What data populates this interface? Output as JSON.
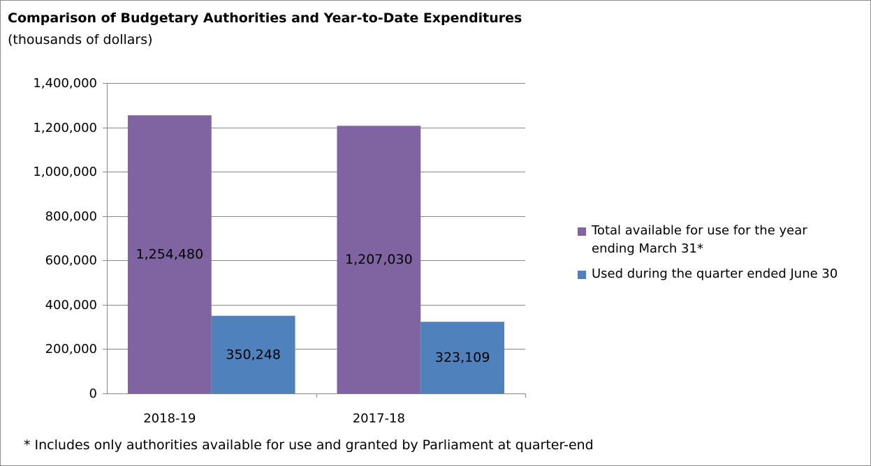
{
  "chart_data": {
    "type": "bar",
    "title": "Comparison of Budgetary Authorities and Year-to-Date Expenditures",
    "subtitle": "(thousands of dollars)",
    "categories": [
      "2018-19",
      "2017-18"
    ],
    "series": [
      {
        "name": "Total available for use for the year ending  March 31*",
        "values": [
          1254480,
          1207030
        ],
        "color": "#8064a2"
      },
      {
        "name": "Used during the quarter ended June 30",
        "values": [
          350248,
          323109
        ],
        "color": "#4f81bd"
      }
    ],
    "data_labels": [
      [
        "1,254,480",
        "1,207,030"
      ],
      [
        "350,248",
        "323,109"
      ]
    ],
    "ylim": [
      0,
      1400000
    ],
    "yticks": [
      0,
      200000,
      400000,
      600000,
      800000,
      1000000,
      1200000,
      1400000
    ],
    "ytick_labels": [
      "0",
      "200,000",
      "400,000",
      "600,000",
      "800,000",
      "1,000,000",
      "1,200,000",
      "1,400,000"
    ],
    "grid": true,
    "legend_position": "right",
    "footnote": "* Includes only authorities available for use and granted by Parliament at quarter-end"
  }
}
